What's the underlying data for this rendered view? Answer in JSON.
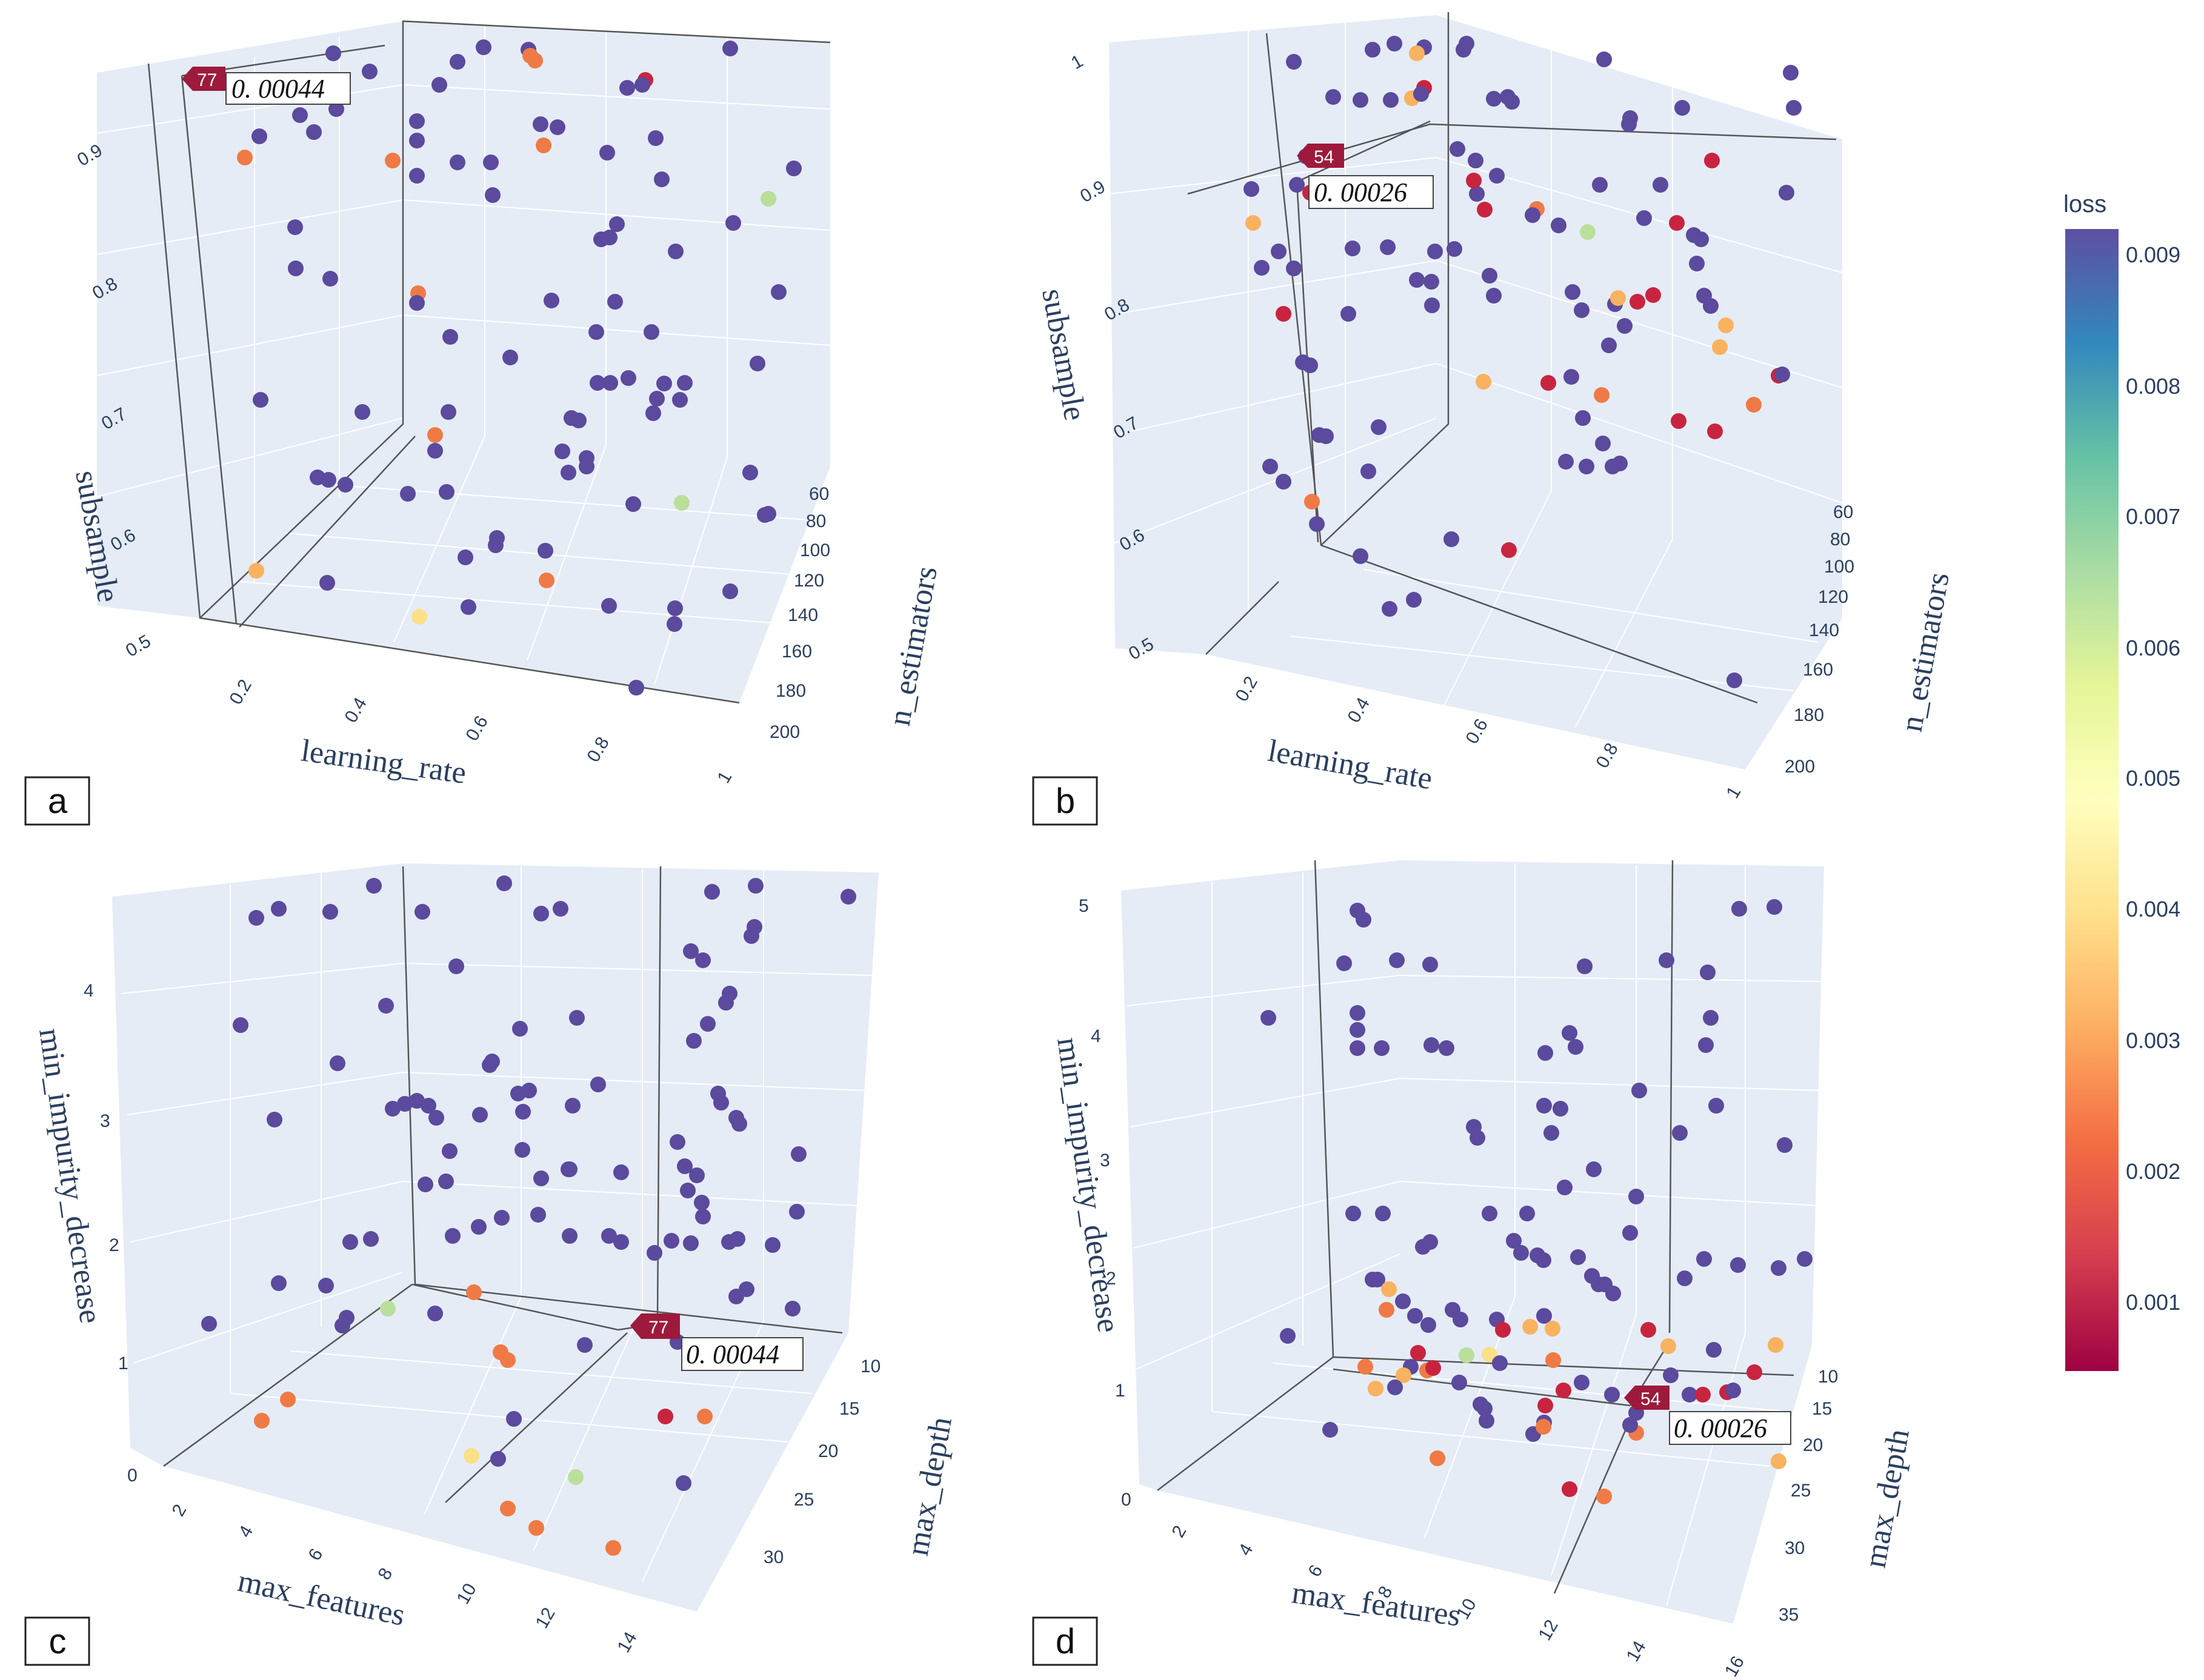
{
  "chart_data": [
    {
      "panel": "a",
      "type": "scatter",
      "dimensions": "3d",
      "xlabel": "learning_rate",
      "ylabel": "n_estimators",
      "zlabel": "subsample",
      "x_ticks": [
        "0.2",
        "0.4",
        "0.6",
        "0.8",
        "1"
      ],
      "y_ticks": [
        "60",
        "80",
        "100",
        "120",
        "140",
        "160",
        "180",
        "200"
      ],
      "z_ticks": [
        "0.5",
        "0.6",
        "0.7",
        "0.8",
        "0.9"
      ],
      "best_trial": {
        "number": "77",
        "value": "0. 00044"
      },
      "points_note": "approximately 110 trials, mostly loss near 0.009 (purple); a few orange/red/yellow/green low-loss trials"
    },
    {
      "panel": "b",
      "type": "scatter",
      "dimensions": "3d",
      "xlabel": "learning_rate",
      "ylabel": "n_estimators",
      "zlabel": "subsample",
      "x_ticks": [
        "0.2",
        "0.4",
        "0.6",
        "0.8",
        "1"
      ],
      "y_ticks": [
        "60",
        "80",
        "100",
        "120",
        "140",
        "160",
        "180",
        "200"
      ],
      "z_ticks": [
        "0.5",
        "0.6",
        "0.7",
        "0.8",
        "0.9",
        "1"
      ],
      "best_trial": {
        "number": "54",
        "value": "0. 00026"
      }
    },
    {
      "panel": "c",
      "type": "scatter",
      "dimensions": "3d",
      "xlabel": "max_features",
      "ylabel": "max_depth",
      "zlabel": "min_impurity_decrease",
      "x_ticks": [
        "2",
        "4",
        "6",
        "8",
        "10",
        "12",
        "14"
      ],
      "y_ticks": [
        "10",
        "15",
        "20",
        "25",
        "30"
      ],
      "z_ticks": [
        "0",
        "1",
        "2",
        "3",
        "4"
      ],
      "best_trial": {
        "number": "77",
        "value": "0. 00044"
      }
    },
    {
      "panel": "d",
      "type": "scatter",
      "dimensions": "3d",
      "xlabel": "max_features",
      "ylabel": "max_depth",
      "zlabel": "min_impurity_decrease",
      "x_ticks": [
        "2",
        "4",
        "6",
        "8",
        "10",
        "12",
        "14",
        "16"
      ],
      "y_ticks": [
        "10",
        "15",
        "20",
        "25",
        "30",
        "35"
      ],
      "z_ticks": [
        "0",
        "1",
        "2",
        "3",
        "4",
        "5"
      ],
      "best_trial": {
        "number": "54",
        "value": "0. 00026"
      }
    }
  ],
  "colorbar": {
    "title": "loss",
    "ticks": [
      "0.009",
      "0.008",
      "0.007",
      "0.006",
      "0.005",
      "0.004",
      "0.003",
      "0.002",
      "0.001"
    ],
    "colors": [
      "#5e4fa2",
      "#3288bd",
      "#66c2a5",
      "#abdda4",
      "#e6f598",
      "#ffffbf",
      "#fee08b",
      "#fdae61",
      "#f46d43",
      "#d53e4f",
      "#9e0142"
    ]
  },
  "marker_colors": {
    "high": "#5b4a9d",
    "orange": "#f07a45",
    "red": "#c9243f",
    "yellow": "#fbe08a",
    "green": "#b9df9a",
    "amber": "#f9b25f"
  }
}
